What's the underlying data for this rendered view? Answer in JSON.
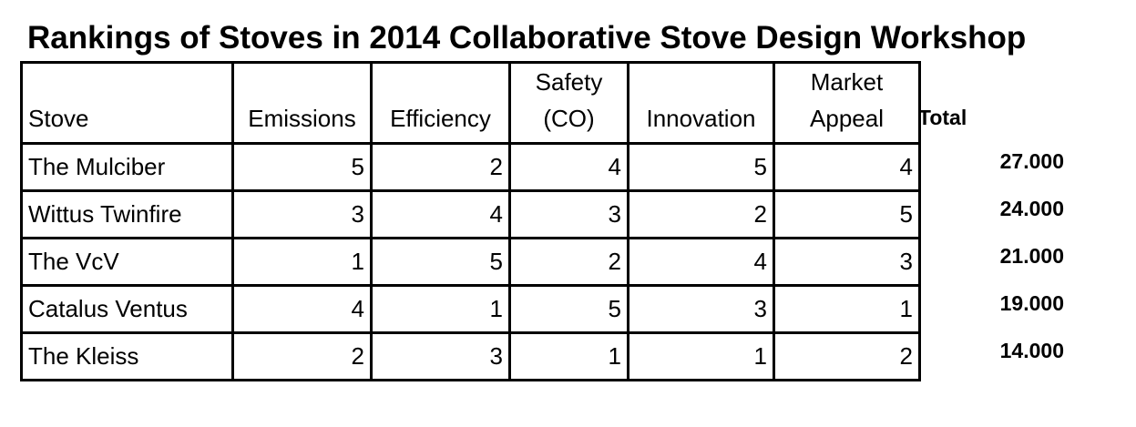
{
  "title": "Rankings of Stoves in 2014 Collaborative Stove Design Workshop",
  "headers": {
    "stove": "Stove",
    "emissions": "Emissions",
    "efficiency": "Efficiency",
    "safety_line1": "Safety",
    "safety_line2": "(CO)",
    "innovation": "Innovation",
    "market_line1": "Market",
    "market_line2": "Appeal",
    "total": "Total"
  },
  "rows": [
    {
      "stove": "The Mulciber",
      "emissions": "5",
      "efficiency": "2",
      "safety": "4",
      "innovation": "5",
      "market": "4",
      "total": "27.000"
    },
    {
      "stove": "Wittus Twinfire",
      "emissions": "3",
      "efficiency": "4",
      "safety": "3",
      "innovation": "2",
      "market": "5",
      "total": "24.000"
    },
    {
      "stove": "The VcV",
      "emissions": "1",
      "efficiency": "5",
      "safety": "2",
      "innovation": "4",
      "market": "3",
      "total": "21.000"
    },
    {
      "stove": "Catalus Ventus",
      "emissions": "4",
      "efficiency": "1",
      "safety": "5",
      "innovation": "3",
      "market": "1",
      "total": "19.000"
    },
    {
      "stove": "The Kleiss",
      "emissions": "2",
      "efficiency": "3",
      "safety": "1",
      "innovation": "1",
      "market": "2",
      "total": "14.000"
    }
  ]
}
